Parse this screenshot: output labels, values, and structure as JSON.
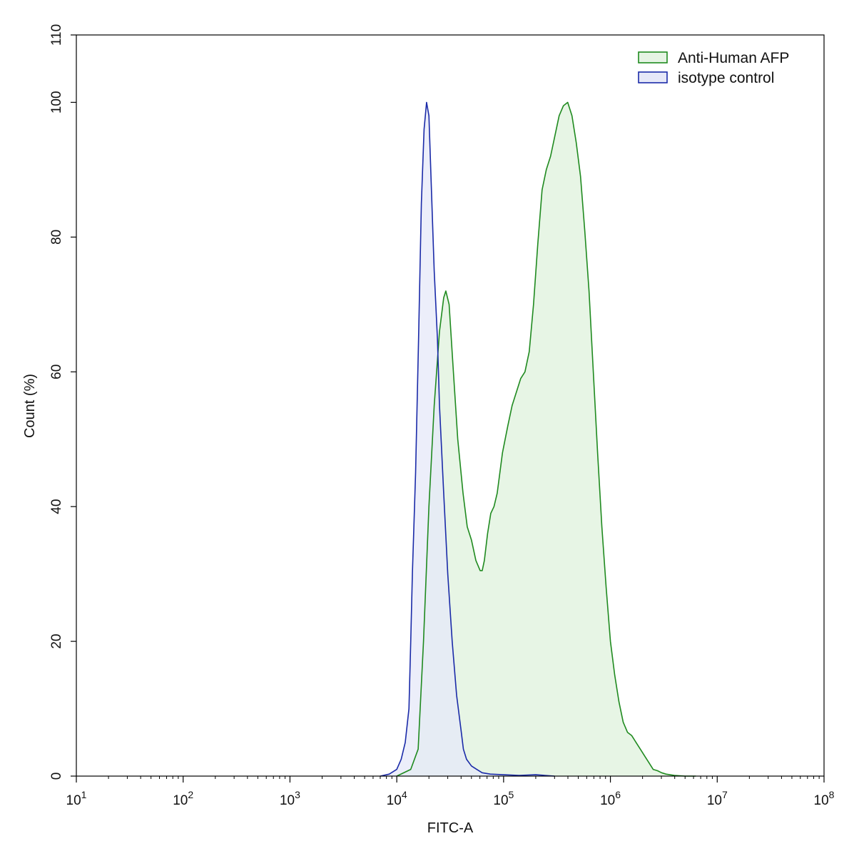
{
  "chart_data": {
    "type": "area",
    "xscale": "log",
    "xlim": [
      10,
      100000000
    ],
    "ylim": [
      0,
      110
    ],
    "xlabel": "FITC-A",
    "ylabel": "Count  (%)",
    "x_ticks": [
      {
        "value": 10,
        "base": "10",
        "exp": "1"
      },
      {
        "value": 100,
        "base": "10",
        "exp": "2"
      },
      {
        "value": 1000,
        "base": "10",
        "exp": "3"
      },
      {
        "value": 10000,
        "base": "10",
        "exp": "4"
      },
      {
        "value": 100000,
        "base": "10",
        "exp": "5"
      },
      {
        "value": 1000000,
        "base": "10",
        "exp": "6"
      },
      {
        "value": 10000000,
        "base": "10",
        "exp": "7"
      },
      {
        "value": 100000000,
        "base": "10",
        "exp": "8"
      }
    ],
    "y_ticks": [
      "0",
      "20",
      "40",
      "60",
      "80",
      "100",
      "110"
    ],
    "legend_position": "top-right",
    "series": [
      {
        "name": "Anti-Human AFP",
        "stroke": "#1f8a1f",
        "fill": "#e6f4e4",
        "x": [
          10000,
          13500,
          15850,
          17800,
          20000,
          22400,
          25100,
          27500,
          28800,
          30900,
          33900,
          37200,
          41700,
          45700,
          50100,
          55000,
          60300,
          63100,
          66100,
          70800,
          75900,
          81300,
          87100,
          97700,
          109600,
          120200,
          131800,
          144500,
          158500,
          173800,
          190500,
          209000,
          229100,
          251200,
          275400,
          302000,
          331100,
          363100,
          398100,
          436500,
          478600,
          524800,
          575400,
          631000,
          691800,
          758600,
          831800,
          912000,
          1000000,
          1096500,
          1202300,
          1318300,
          1445400,
          1584900,
          1737800,
          1905500,
          2089300,
          2290900,
          2511900,
          2754200,
          3019950,
          3311300,
          3981100,
          5012000,
          6309600
        ],
        "y": [
          0,
          1,
          4,
          20,
          40,
          55,
          66,
          71,
          72,
          70,
          60,
          50,
          42,
          37,
          35,
          32,
          30.5,
          30.5,
          32,
          36,
          39,
          40,
          42,
          48,
          52,
          55,
          57,
          59,
          60,
          63,
          70,
          79,
          87,
          90,
          92,
          95,
          98,
          99.5,
          100,
          98,
          94,
          89,
          81,
          72,
          60,
          48,
          37,
          28,
          20,
          15,
          11,
          8,
          6.5,
          6,
          5,
          4,
          3,
          2,
          1,
          0.8,
          0.5,
          0.3,
          0.1,
          0,
          0
        ]
      },
      {
        "name": "isotype control",
        "stroke": "#1a2aa8",
        "fill": "#e6e8f8",
        "x": [
          7000,
          8500,
          10000,
          11000,
          12000,
          13000,
          13500,
          14000,
          15000,
          16000,
          17000,
          18000,
          19000,
          20000,
          21000,
          22400,
          24000,
          25100,
          27500,
          30000,
          33000,
          36300,
          39800,
          42000,
          45000,
          50000,
          56000,
          63000,
          75000,
          100000,
          140000,
          200000,
          300000
        ],
        "y": [
          0,
          0.3,
          1,
          2.5,
          5,
          10,
          20,
          30,
          45,
          65,
          85,
          96,
          100,
          98,
          88,
          75,
          65,
          55,
          42,
          30,
          20,
          12,
          7,
          4,
          2.5,
          1.5,
          1,
          0.5,
          0.3,
          0.2,
          0.1,
          0.2,
          0
        ]
      }
    ]
  }
}
